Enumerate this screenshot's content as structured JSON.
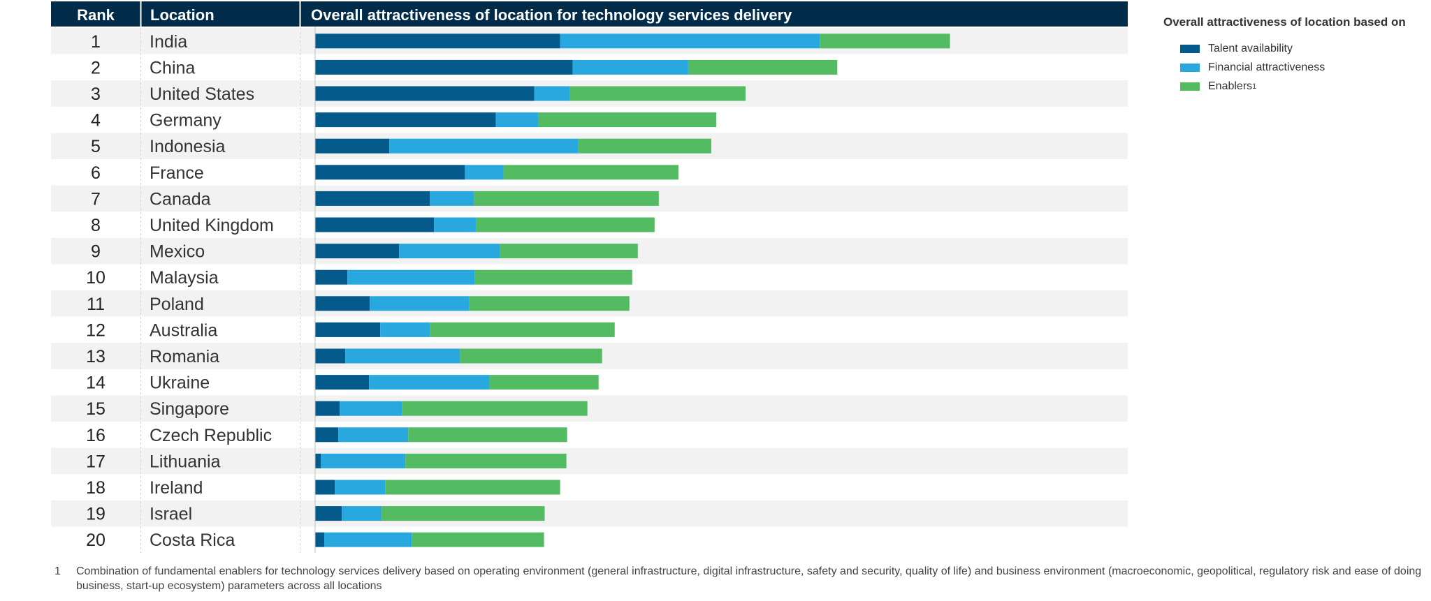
{
  "header": {
    "rank_label": "Rank",
    "location_label": "Location",
    "chart_label": "Overall attractiveness of location for technology services delivery"
  },
  "legend": {
    "title": "Overall attractiveness of location based on",
    "items": [
      {
        "label": "Talent availability",
        "color": "#055A8C"
      },
      {
        "label": "Financial attractiveness",
        "color": "#29A8E0"
      },
      {
        "label": "Enablers",
        "sup": "1",
        "color": "#53BC63"
      }
    ]
  },
  "footnote": {
    "marker": "1",
    "text": "Combination of fundamental enablers for technology services delivery based on operating environment (general infrastructure, digital infrastructure, safety and security, quality of life) and business environment (macroeconomic, geopolitical, regulatory risk and ease of doing business, start-up ecosystem) parameters across all locations"
  },
  "colors": {
    "header_bg": "#002B49",
    "row_shade": "#F2F2F2"
  },
  "chart_data": {
    "type": "bar",
    "orientation": "horizontal",
    "stacked": true,
    "title": "Overall attractiveness of location for technology services delivery",
    "ranks": [
      "1",
      "2",
      "3",
      "4",
      "5",
      "6",
      "7",
      "8",
      "9",
      "10",
      "11",
      "12",
      "13",
      "14",
      "15",
      "16",
      "17",
      "18",
      "19",
      "20"
    ],
    "categories": [
      "India",
      "China",
      "United States",
      "Germany",
      "Indonesia",
      "France",
      "Canada",
      "United Kingdom",
      "Mexico",
      "Malaysia",
      "Poland",
      "Australia",
      "Romania",
      "Ukraine",
      "Singapore",
      "Czech Republic",
      "Lithuania",
      "Ireland",
      "Israel",
      "Costa Rica"
    ],
    "series": [
      {
        "name": "Talent availability",
        "color": "#055A8C",
        "values": [
          350,
          368,
          313,
          258,
          106,
          214,
          164,
          170,
          120,
          46,
          78,
          93,
          43,
          77,
          35,
          33,
          8,
          28,
          38,
          13
        ]
      },
      {
        "name": "Financial attractiveness",
        "color": "#29A8E0",
        "values": [
          371,
          165,
          51,
          61,
          270,
          55,
          63,
          60,
          144,
          182,
          142,
          71,
          164,
          172,
          89,
          100,
          121,
          72,
          57,
          125
        ]
      },
      {
        "name": "Enablers",
        "color": "#53BC63",
        "values": [
          186,
          213,
          251,
          254,
          190,
          250,
          264,
          255,
          197,
          225,
          229,
          264,
          203,
          156,
          265,
          227,
          230,
          250,
          233,
          189
        ]
      }
    ],
    "xlabel": "",
    "ylabel": "",
    "xlim": [
      0,
      1160
    ],
    "grid": false,
    "legend_position": "top-right"
  }
}
